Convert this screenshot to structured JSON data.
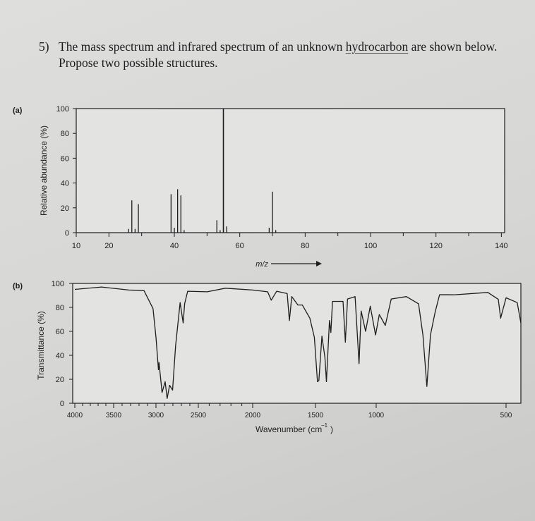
{
  "question": {
    "number": "5)",
    "text_before": "The mass spectrum and infrared spectrum of an unknown ",
    "underlined_word": "hydrocarbon",
    "text_after": " are shown below. Propose two possible structures."
  },
  "chart_data": [
    {
      "panel_label": "(a)",
      "type": "bar",
      "ylabel": "Relative abundance (%)",
      "xlabel": "m/z",
      "xlim": [
        10,
        141
      ],
      "ylim": [
        0,
        100
      ],
      "x_tick_labels": [
        "10",
        "20",
        "40",
        "60",
        "80",
        "100",
        "120",
        "140"
      ],
      "x_tick_values": [
        10,
        20,
        40,
        60,
        80,
        100,
        120,
        140
      ],
      "x_minor_ticks": [
        30,
        50,
        70,
        90,
        110,
        130
      ],
      "y_tick_labels": [
        "0",
        "20",
        "40",
        "60",
        "80",
        "100"
      ],
      "y_tick_values": [
        0,
        20,
        40,
        60,
        80,
        100
      ],
      "grid": false,
      "peaks": [
        {
          "mz": 26,
          "abundance": 3
        },
        {
          "mz": 27,
          "abundance": 26
        },
        {
          "mz": 28,
          "abundance": 3
        },
        {
          "mz": 29,
          "abundance": 23
        },
        {
          "mz": 39,
          "abundance": 31
        },
        {
          "mz": 40,
          "abundance": 4
        },
        {
          "mz": 41,
          "abundance": 35
        },
        {
          "mz": 42,
          "abundance": 30
        },
        {
          "mz": 43,
          "abundance": 2
        },
        {
          "mz": 53,
          "abundance": 10
        },
        {
          "mz": 54,
          "abundance": 2
        },
        {
          "mz": 55,
          "abundance": 100
        },
        {
          "mz": 56,
          "abundance": 5
        },
        {
          "mz": 69,
          "abundance": 4
        },
        {
          "mz": 70,
          "abundance": 33
        },
        {
          "mz": 71,
          "abundance": 2
        }
      ]
    },
    {
      "panel_label": "(b)",
      "type": "line",
      "ylabel": "Transmittance (%)",
      "xlabel": "Wavenumber (cm",
      "xlabel_sup": "−1",
      "xlabel_end": ")",
      "xlim": [
        4000,
        400
      ],
      "ylim": [
        0,
        100
      ],
      "x_tick_labels": [
        "4000",
        "3500",
        "3000",
        "2500",
        "2000",
        "1500",
        "1000",
        "500"
      ],
      "x_tick_values": [
        4000,
        3500,
        3000,
        2500,
        2000,
        1500,
        1000,
        500
      ],
      "y_tick_labels": [
        "0",
        "20",
        "40",
        "60",
        "80",
        "100"
      ],
      "y_tick_values": [
        0,
        20,
        40,
        60,
        80,
        100
      ],
      "grid": false,
      "series": [
        {
          "x": [
            4000,
            3655,
            3320,
            3142,
            3035,
            3000,
            2971,
            2964,
            2928,
            2892,
            2868,
            2839,
            2804,
            2768,
            2715,
            2679,
            2662,
            2626,
            2418,
            2251,
            2000,
            1881,
            1852,
            1809,
            1725,
            1708,
            1689,
            1640,
            1605,
            1545,
            1509,
            1484,
            1472,
            1447,
            1422,
            1410,
            1385,
            1373,
            1360,
            1273,
            1254,
            1236,
            1174,
            1141,
            1124,
            1087,
            1049,
            1005,
            988,
            965,
            942,
            884,
            837,
            820,
            805,
            791,
            773,
            756,
            698,
            570,
            530,
            521,
            500,
            425,
            400
          ],
          "y": [
            95,
            97,
            94.5,
            94,
            79,
            55,
            28,
            34,
            9,
            18,
            4,
            15,
            11,
            48,
            84,
            67,
            83,
            93.5,
            93,
            96,
            94.5,
            93,
            86,
            93.5,
            91.5,
            69,
            89,
            82,
            82,
            71,
            55,
            18,
            19,
            56,
            38,
            18,
            69,
            59,
            85,
            85,
            51,
            87,
            89,
            33,
            77,
            60,
            81,
            57,
            74,
            65,
            87,
            89,
            83,
            57,
            14,
            57,
            76,
            90.6,
            90.5,
            92.5,
            86.7,
            71,
            88,
            84,
            67
          ]
        }
      ]
    }
  ],
  "colors": {
    "ink": "#1e1e1e",
    "paper": "#dadad8"
  }
}
